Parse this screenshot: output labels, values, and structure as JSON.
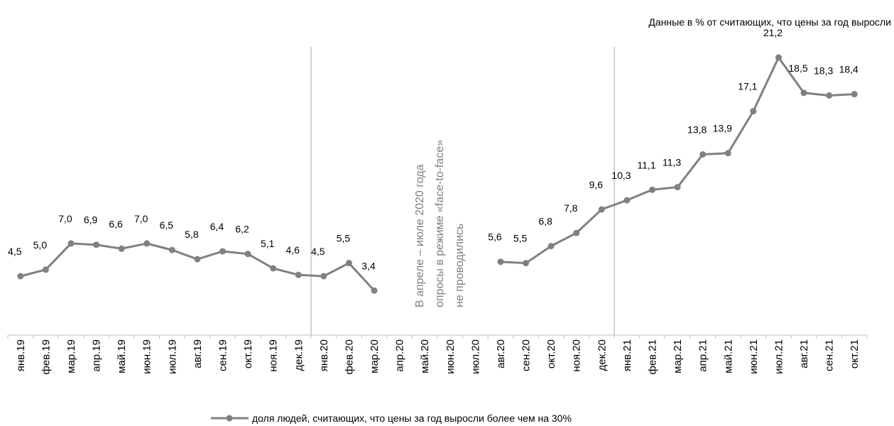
{
  "chart_data": {
    "type": "line",
    "subtitle": "Данные в % от считающих, что цены за год выросли",
    "annotation": [
      "В апреле – июле 2020 года",
      "опросы в режиме «face-to-face»",
      "не проводились"
    ],
    "categories": [
      "янв.19",
      "фев.19",
      "мар.19",
      "апр.19",
      "май.19",
      "июн.19",
      "июл.19",
      "авг.19",
      "сен.19",
      "окт.19",
      "ноя.19",
      "дек.19",
      "янв.20",
      "фев.20",
      "мар.20",
      "апр.20",
      "май.20",
      "июн.20",
      "июл.20",
      "авг.20",
      "сен.20",
      "окт.20",
      "ноя.20",
      "дек.20",
      "янв.21",
      "фев.21",
      "мар.21",
      "апр.21",
      "май.21",
      "июн.21",
      "июл.21",
      "авг.21",
      "сен.21",
      "окт.21"
    ],
    "series": [
      {
        "name": "доля людей, считающих, что цены за год выросли более чем на 30%",
        "color": "#808080",
        "values": [
          4.5,
          5.0,
          7.0,
          6.9,
          6.6,
          7.0,
          6.5,
          5.8,
          6.4,
          6.2,
          5.1,
          4.6,
          4.5,
          5.5,
          3.4,
          null,
          null,
          null,
          null,
          5.6,
          5.5,
          6.8,
          7.8,
          9.6,
          10.3,
          11.1,
          11.3,
          13.8,
          13.9,
          17.1,
          21.2,
          18.5,
          18.3,
          18.4
        ],
        "value_labels": [
          "4,5",
          "5,0",
          "7,0",
          "6,9",
          "6,6",
          "7,0",
          "6,5",
          "5,8",
          "6,4",
          "6,2",
          "5,1",
          "4,6",
          "4,5",
          "5,5",
          "3,4",
          null,
          null,
          null,
          null,
          "5,6",
          "5,5",
          "6,8",
          "7,8",
          "9,6",
          "10,3",
          "11,1",
          "11,3",
          "13,8",
          "13,9",
          "17,1",
          "21,2",
          "18,5",
          "18,3",
          "18,4"
        ]
      }
    ],
    "legend": "bottom"
  }
}
